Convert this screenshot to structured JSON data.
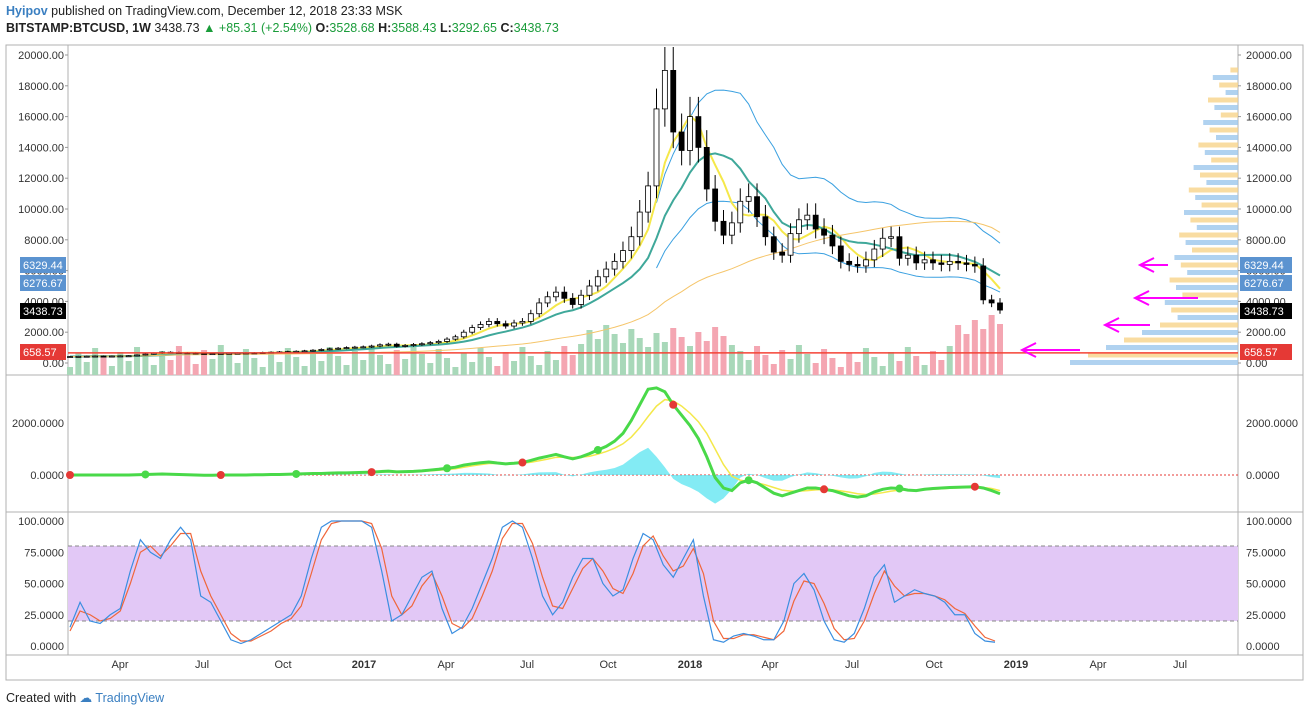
{
  "header": {
    "author": "Hyipov",
    "published_text": "published on TradingView.com, December 12, 2018 23:33 MSK",
    "symbol": "BITSTAMP:BTCUSD, 1W",
    "last": "3438.73",
    "up_arrow": "▲",
    "change": "+85.31 (+2.54%)",
    "o_label": "O:",
    "o": "3528.68",
    "h_label": "H:",
    "h": "3588.43",
    "l_label": "L:",
    "l": "3292.65",
    "c_label": "C:",
    "c": "3438.73"
  },
  "footer": {
    "created_with": "Created with",
    "brand": "TradingView"
  },
  "colors": {
    "up_candle": "#ffffff",
    "down_candle": "#000000",
    "volume_up": "#a8d8b9",
    "volume_down": "#f4a6b2",
    "band_fill": "#e3f1fb",
    "band_line": "#3aa0e0",
    "ma_fast": "#f5e84a",
    "ma_slow": "#3fa89a",
    "support_line": "#f44336",
    "arrow": "#ff00ff",
    "stoch_band": "#e2c8f6"
  },
  "chart_data": [
    {
      "type": "line",
      "title": "BITSTAMP:BTCUSD, 1W",
      "xlabel": "",
      "ylabel": "",
      "x_tick_labels": [
        "Apr",
        "Jul",
        "Oct",
        "2017",
        "Apr",
        "Jul",
        "Oct",
        "2018",
        "Apr",
        "Jul",
        "Oct",
        "2019",
        "Apr",
        "Jul"
      ],
      "y_tick_labels": [
        "0.00",
        "2000.00",
        "4000.00",
        "6000.00",
        "8000.00",
        "10000.00",
        "12000.00",
        "14000.00",
        "16000.00",
        "18000.00",
        "20000.00"
      ],
      "ylim": [
        0,
        20000
      ],
      "price_labels": {
        "upper_band": "6329.44",
        "ma": "6276.67",
        "last": "3438.73",
        "support": "658.57"
      },
      "support_level": 658.57,
      "weekly_close": [
        420,
        430,
        440,
        450,
        440,
        450,
        460,
        470,
        520,
        580,
        640,
        700,
        680,
        660,
        650,
        620,
        600,
        610,
        620,
        630,
        640,
        650,
        660,
        680,
        700,
        720,
        740,
        760,
        790,
        830,
        880,
        920,
        960,
        1000,
        1030,
        1050,
        1100,
        1180,
        1220,
        1080,
        1140,
        1200,
        1250,
        1320,
        1400,
        1550,
        1700,
        2000,
        2300,
        2500,
        2700,
        2550,
        2400,
        2600,
        2700,
        3200,
        3900,
        4300,
        4600,
        4200,
        3800,
        4400,
        5000,
        5600,
        6100,
        6600,
        7300,
        8200,
        9800,
        11500,
        16500,
        19000,
        15000,
        13800,
        16000,
        14000,
        11300,
        9200,
        8300,
        9100,
        10500,
        10800,
        9500,
        8200,
        7200,
        7000,
        8400,
        9300,
        9600,
        8700,
        8300,
        7600,
        6600,
        6400,
        6300,
        6700,
        7400,
        8100,
        8200,
        6800,
        7000,
        6500,
        6700,
        6500,
        6400,
        6600,
        6500,
        6400,
        6300,
        4100,
        3900,
        3438.73
      ],
      "series_overlay": [
        {
          "name": "",
          "values": []
        }
      ],
      "volume_profile": "horizontal volume-by-price bars at right edge",
      "grid": false
    },
    {
      "type": "line",
      "title": "",
      "y_tick_labels": [
        "0.0000",
        "2000.0000"
      ],
      "ylim": [
        -1200,
        3600
      ],
      "oscillator_fast": [
        0,
        0,
        0,
        0,
        0,
        0,
        0,
        0,
        10,
        20,
        30,
        40,
        30,
        20,
        10,
        0,
        -10,
        -10,
        0,
        0,
        0,
        0,
        10,
        10,
        20,
        20,
        30,
        40,
        50,
        60,
        60,
        70,
        80,
        80,
        90,
        100,
        110,
        130,
        150,
        120,
        130,
        140,
        160,
        190,
        220,
        260,
        300,
        380,
        430,
        470,
        500,
        460,
        430,
        450,
        480,
        560,
        650,
        720,
        790,
        700,
        620,
        700,
        820,
        960,
        1100,
        1300,
        1600,
        2100,
        2700,
        3300,
        3350,
        3200,
        2700,
        2300,
        1900,
        1400,
        700,
        -100,
        -500,
        -600,
        -300,
        -200,
        -300,
        -500,
        -700,
        -800,
        -700,
        -600,
        -500,
        -500,
        -550,
        -600,
        -700,
        -800,
        -850,
        -800,
        -650,
        -550,
        -500,
        -520,
        -580,
        -600,
        -550,
        -520,
        -500,
        -480,
        -470,
        -460,
        -450,
        -500,
        -600,
        -720
      ],
      "oscillator_slow": [
        0,
        0,
        0,
        0,
        0,
        0,
        0,
        0,
        5,
        10,
        20,
        30,
        30,
        25,
        20,
        10,
        0,
        -5,
        -5,
        0,
        0,
        0,
        5,
        8,
        12,
        15,
        20,
        28,
        36,
        45,
        52,
        60,
        66,
        72,
        78,
        85,
        94,
        108,
        122,
        122,
        126,
        132,
        142,
        160,
        182,
        210,
        242,
        296,
        350,
        400,
        440,
        448,
        444,
        446,
        458,
        492,
        548,
        612,
        680,
        688,
        672,
        682,
        720,
        800,
        900,
        1030,
        1200,
        1460,
        1820,
        2250,
        2650,
        2900,
        2850,
        2650,
        2380,
        2050,
        1600,
        1000,
        400,
        -50,
        -200,
        -250,
        -300,
        -380,
        -480,
        -580,
        -620,
        -620,
        -600,
        -570,
        -560,
        -570,
        -610,
        -660,
        -720,
        -750,
        -730,
        -680,
        -620,
        -580,
        -580,
        -580,
        -570,
        -550,
        -530,
        -510,
        -495,
        -485,
        -470,
        -480,
        -520,
        -600
      ],
      "grid": false
    },
    {
      "type": "line",
      "title": "",
      "y_tick_labels": [
        "0.0000",
        "25.0000",
        "50.0000",
        "75.0000",
        "100.0000"
      ],
      "ylim": [
        0,
        100
      ],
      "band": [
        20,
        80
      ],
      "series": [
        {
          "name": "",
          "values": [
            15,
            35,
            20,
            18,
            25,
            30,
            60,
            85,
            75,
            70,
            85,
            95,
            85,
            40,
            35,
            20,
            5,
            2,
            5,
            10,
            15,
            20,
            25,
            40,
            70,
            95,
            100,
            100,
            100,
            100,
            95,
            60,
            20,
            25,
            40,
            55,
            60,
            30,
            10,
            15,
            30,
            50,
            70,
            95,
            100,
            95,
            70,
            40,
            25,
            35,
            55,
            70,
            70,
            50,
            40,
            45,
            70,
            90,
            85,
            65,
            55,
            70,
            85,
            40,
            5,
            3,
            8,
            10,
            8,
            5,
            5,
            20,
            50,
            58,
            45,
            20,
            5,
            3,
            10,
            30,
            55,
            65,
            35,
            40,
            45,
            42,
            40,
            35,
            25,
            25,
            10,
            4,
            3
          ]
        },
        {
          "name": "",
          "values": [
            12,
            28,
            25,
            20,
            22,
            28,
            50,
            75,
            80,
            72,
            80,
            90,
            90,
            60,
            40,
            25,
            10,
            4,
            4,
            8,
            12,
            18,
            22,
            32,
            58,
            85,
            98,
            100,
            100,
            100,
            98,
            78,
            40,
            25,
            32,
            48,
            58,
            40,
            18,
            14,
            22,
            40,
            60,
            86,
            98,
            98,
            82,
            55,
            32,
            30,
            46,
            62,
            70,
            60,
            46,
            42,
            58,
            80,
            88,
            72,
            60,
            64,
            78,
            58,
            20,
            6,
            6,
            9,
            9,
            7,
            5,
            12,
            36,
            52,
            50,
            34,
            14,
            5,
            6,
            20,
            42,
            60,
            48,
            40,
            42,
            42,
            40,
            37,
            30,
            26,
            16,
            7,
            4
          ]
        }
      ]
    }
  ]
}
